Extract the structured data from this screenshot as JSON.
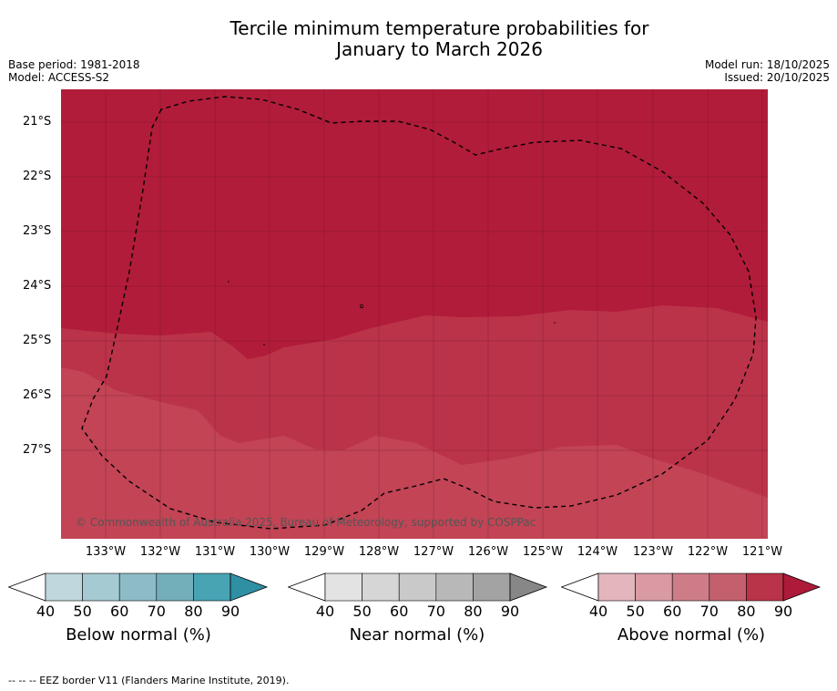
{
  "header": {
    "title_line1": "Tercile minimum temperature probabilities for",
    "title_line2": "January to March 2026",
    "base_period": "Base period: 1981-2018",
    "model": "Model: ACCESS-S2",
    "model_run": "Model run: 18/10/2025",
    "issued": "Issued: 20/10/2025"
  },
  "map": {
    "lat_labels": [
      "21°S",
      "22°S",
      "23°S",
      "24°S",
      "25°S",
      "26°S",
      "27°S"
    ],
    "lon_labels": [
      "133°W",
      "132°W",
      "131°W",
      "130°W",
      "129°W",
      "128°W",
      "127°W",
      "126°W",
      "125°W",
      "124°W",
      "123°W",
      "122°W",
      "121°W"
    ],
    "credit": "© Commonwealth of Australia 2025, Bureau of Meteorology, supported by COSPPac",
    "colors": {
      "band_90": "#b11c3a",
      "band_80": "#bb3349",
      "band_70": "#c24455",
      "band_70b": "#c54b5b"
    }
  },
  "colorbars": [
    {
      "name": "below",
      "title": "Below normal (%)",
      "ticks": [
        "40",
        "50",
        "60",
        "70",
        "80",
        "90"
      ],
      "colors": [
        "#bfd7dd",
        "#a6cad2",
        "#8dbcc7",
        "#73aebb",
        "#48a3b3",
        "#2f8fa3"
      ]
    },
    {
      "name": "near",
      "title": "Near normal (%)",
      "ticks": [
        "40",
        "50",
        "60",
        "70",
        "80",
        "90"
      ],
      "colors": [
        "#e3e3e3",
        "#d6d6d6",
        "#c9c9c9",
        "#b8b8b8",
        "#a3a3a3",
        "#878787"
      ]
    },
    {
      "name": "above",
      "title": "Above normal (%)",
      "ticks": [
        "40",
        "50",
        "60",
        "70",
        "80",
        "90"
      ],
      "colors": [
        "#e3b6bd",
        "#d99aa3",
        "#ce7d88",
        "#c4606e",
        "#b93349",
        "#ad1a3a"
      ]
    }
  ],
  "footer": {
    "legend": "--  --  -- EEZ border V11 (Flanders Marine Institute, 2019)."
  }
}
